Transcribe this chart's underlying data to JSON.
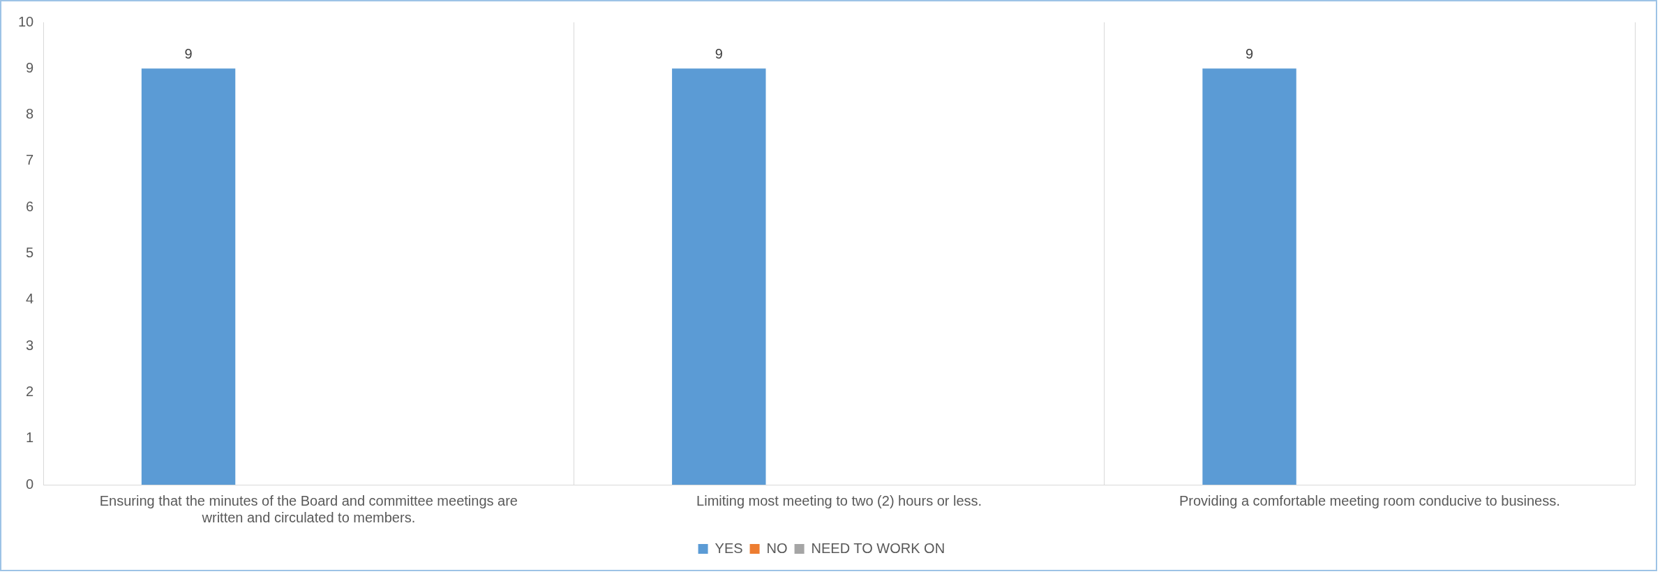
{
  "chart_data": {
    "type": "bar",
    "categories": [
      "Ensuring that the minutes of the Board and committee meetings are written and circulated to members.",
      "Limiting most meeting to two (2) hours or less.",
      "Providing a comfortable meeting room conducive to business."
    ],
    "series": [
      {
        "name": "YES",
        "color": "#5b9bd5",
        "values": [
          9,
          9,
          9
        ]
      },
      {
        "name": "NO",
        "color": "#ed7d31",
        "values": [
          null,
          null,
          null
        ]
      },
      {
        "name": "NEED TO WORK ON",
        "color": "#a5a5a5",
        "values": [
          null,
          null,
          null
        ]
      }
    ],
    "ylim": [
      0,
      10
    ],
    "yticks": [
      0,
      1,
      2,
      3,
      4,
      5,
      6,
      7,
      8,
      9,
      10
    ],
    "grid": "x",
    "legend": "bottom",
    "data_labels": true
  }
}
